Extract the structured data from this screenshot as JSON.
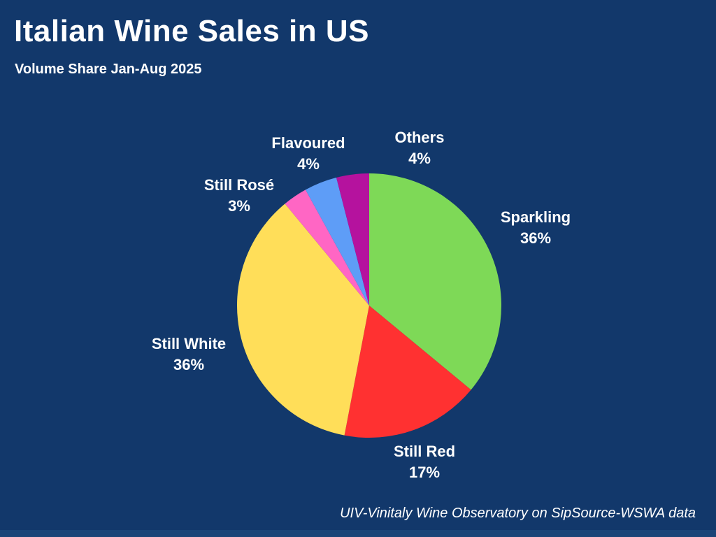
{
  "page": {
    "background_color": "#12386B",
    "bottom_bar_color": "#1A4578",
    "text_color": "#FFFFFF"
  },
  "header": {
    "title": "Italian Wine Sales in US",
    "subtitle": "Volume Share Jan-Aug 2025"
  },
  "footer": {
    "source_note": "UIV-Vinitaly Wine Observatory on SipSource-WSWA data"
  },
  "chart_data": {
    "type": "pie",
    "title": "Italian Wine Sales in US",
    "subtitle": "Volume Share Jan-Aug 2025",
    "unit": "percent",
    "start_angle_deg_from_12_oclock": 0,
    "direction": "clockwise",
    "legend": "none",
    "labels_position": "outside",
    "slices": [
      {
        "label": "Sparkling",
        "value": 36,
        "value_label": "36%",
        "color": "#7ED957"
      },
      {
        "label": "Still Red",
        "value": 17,
        "value_label": "17%",
        "color": "#FF3131"
      },
      {
        "label": "Still White",
        "value": 36,
        "value_label": "36%",
        "color": "#FFDE59"
      },
      {
        "label": "Still Rosé",
        "value": 3,
        "value_label": "3%",
        "color": "#FF66C4"
      },
      {
        "label": "Flavoured",
        "value": 4,
        "value_label": "4%",
        "color": "#5E9DF7"
      },
      {
        "label": "Others",
        "value": 4,
        "value_label": "4%",
        "color": "#B5129E"
      }
    ],
    "source_note": "UIV-Vinitaly Wine Observatory on SipSource-WSWA data"
  }
}
